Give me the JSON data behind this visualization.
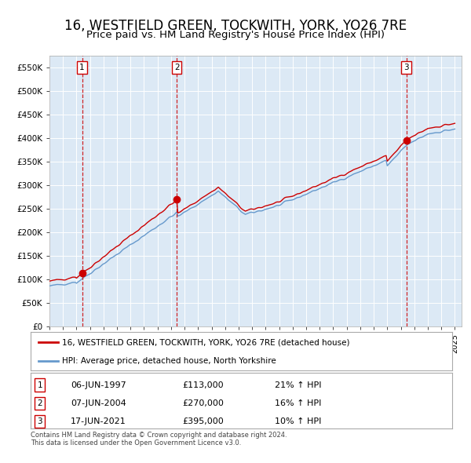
{
  "title": "16, WESTFIELD GREEN, TOCKWITH, YORK, YO26 7RE",
  "subtitle": "Price paid vs. HM Land Registry's House Price Index (HPI)",
  "ylim": [
    0,
    575000
  ],
  "yticks": [
    0,
    50000,
    100000,
    150000,
    200000,
    250000,
    300000,
    350000,
    400000,
    450000,
    500000,
    550000
  ],
  "ytick_labels": [
    "£0",
    "£50K",
    "£100K",
    "£150K",
    "£200K",
    "£250K",
    "£300K",
    "£350K",
    "£400K",
    "£450K",
    "£500K",
    "£550K"
  ],
  "background_color": "#ffffff",
  "plot_bg_color": "#dce9f5",
  "grid_color": "#ffffff",
  "title_fontsize": 12,
  "subtitle_fontsize": 9.5,
  "sale_prices": [
    113000,
    270000,
    395000
  ],
  "sale_labels": [
    "1",
    "2",
    "3"
  ],
  "sale_hpi_pct": [
    "21% ↑ HPI",
    "16% ↑ HPI",
    "10% ↑ HPI"
  ],
  "sale_date_strs": [
    "06-JUN-1997",
    "07-JUN-2004",
    "17-JUN-2021"
  ],
  "sale_price_strs": [
    "£113,000",
    "£270,000",
    "£395,000"
  ],
  "legend_label_red": "16, WESTFIELD GREEN, TOCKWITH, YORK, YO26 7RE (detached house)",
  "legend_label_blue": "HPI: Average price, detached house, North Yorkshire",
  "footer": "Contains HM Land Registry data © Crown copyright and database right 2024.\nThis data is licensed under the Open Government Licence v3.0.",
  "red_color": "#cc0000",
  "blue_color": "#6699cc"
}
